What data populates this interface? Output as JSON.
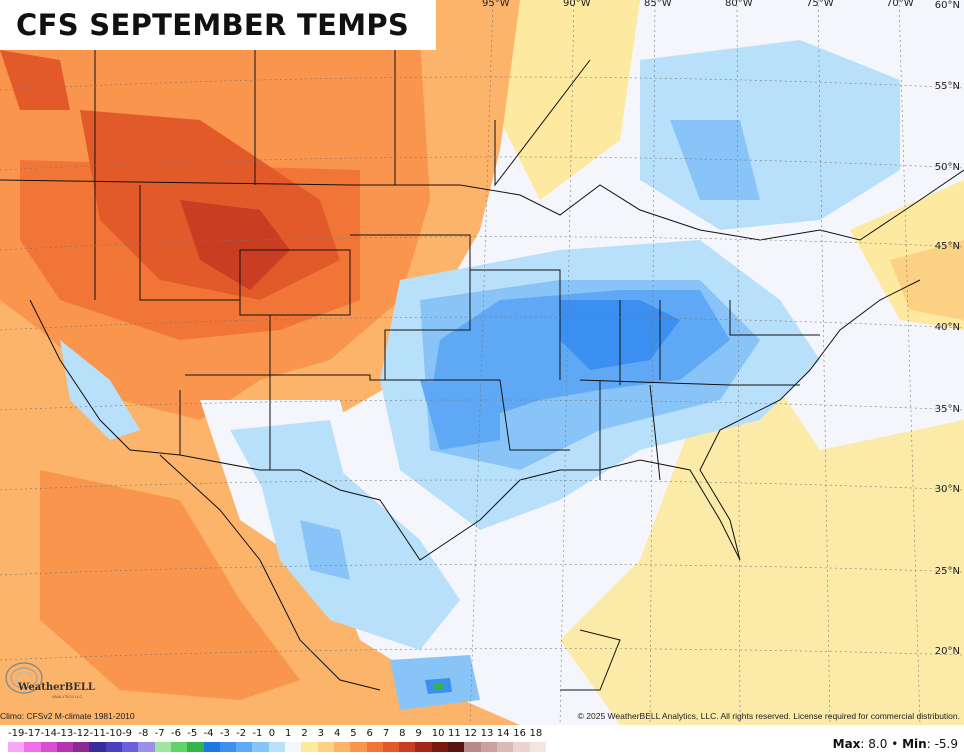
{
  "title": "CFS SEPTEMBER TEMPS",
  "longitude_labels": [
    "95°W",
    "90°W",
    "85°W",
    "80°W",
    "75°W",
    "70°W"
  ],
  "latitude_labels": [
    "60°N",
    "55°N",
    "50°N",
    "45°N",
    "40°N",
    "35°N",
    "30°N",
    "25°N",
    "20°N"
  ],
  "climo_note": "Climo: CFSv2 M-climate 1981-2010",
  "copyright": "© 2025 WeatherBELL Analytics, LLC. All rights reserved. License required for commercial distribution.",
  "logo": {
    "name": "WeatherBELL",
    "subtitle": "ANALYTICS LLC"
  },
  "stats": {
    "max_label": "Max",
    "max_value": "8.0",
    "min_label": "Min",
    "min_value": "-5.9",
    "separator": "•"
  },
  "colorbar": {
    "labels": [
      "-19",
      "-17",
      "-14",
      "-13",
      "-12",
      "-11",
      "-10",
      "-9",
      "-8",
      "-7",
      "-6",
      "-5",
      "-4",
      "-3",
      "-2",
      "-1",
      "0",
      "1",
      "2",
      "3",
      "4",
      "5",
      "6",
      "7",
      "8",
      "9",
      "10",
      "11",
      "12",
      "13",
      "14",
      "16",
      "18"
    ],
    "colors": [
      "#f6a8f6",
      "#ee6fe6",
      "#d84fd0",
      "#b534b0",
      "#8a2b8f",
      "#3a2a9a",
      "#4b3fc0",
      "#6a5fdc",
      "#9b91ea",
      "#9ee5a0",
      "#63d46a",
      "#34b34a",
      "#1b7ae0",
      "#3a8ff0",
      "#5fa8f5",
      "#89c4f8",
      "#b8e0fb",
      "#f4f6fc",
      "#fde9a0",
      "#fdd184",
      "#fbb46a",
      "#f9954c",
      "#f27538",
      "#e35a2a",
      "#c93d22",
      "#a52717",
      "#7c1a10",
      "#5b1510",
      "#b58a88",
      "#caa19e",
      "#dbb9b6",
      "#edd3d0",
      "#f6e4e2"
    ]
  },
  "legend_note_colors": {
    "warm": "#f08a42",
    "cool": "#4a90e8",
    "neutral": "#f4f6fc"
  }
}
